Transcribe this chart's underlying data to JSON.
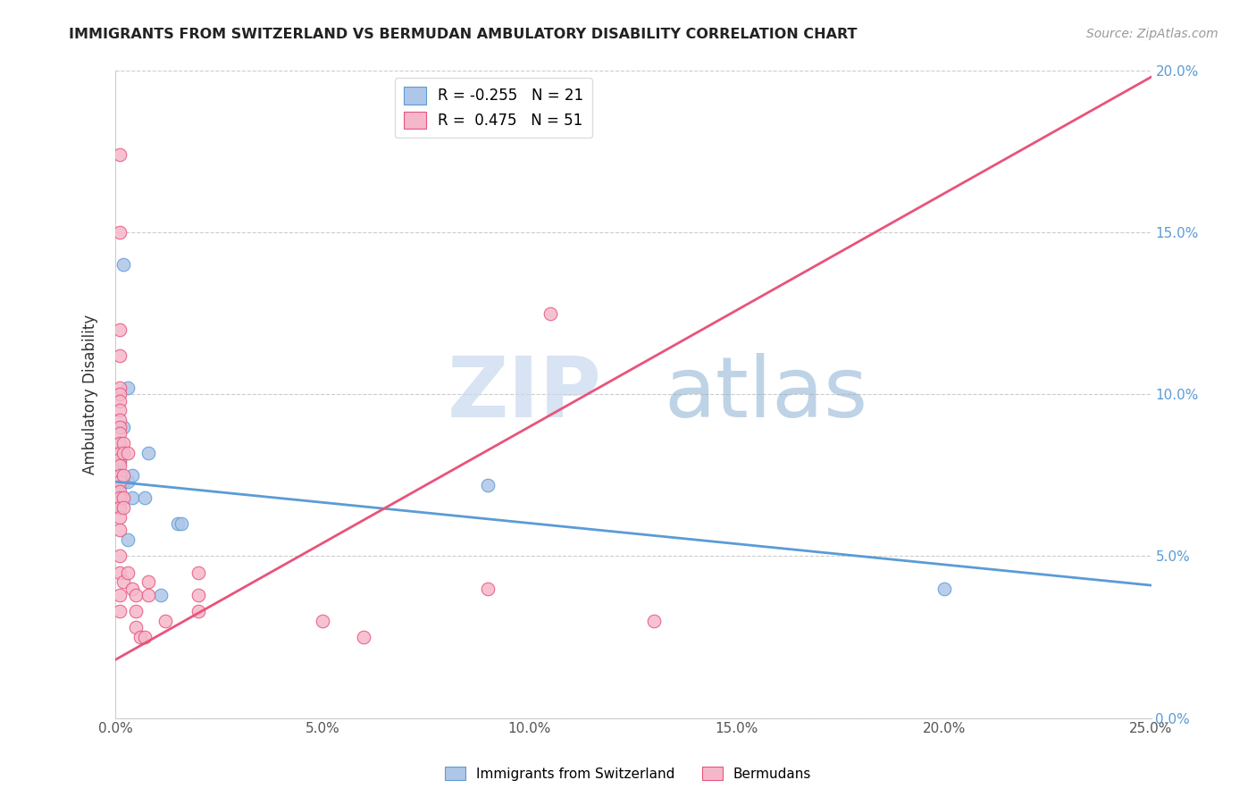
{
  "title": "IMMIGRANTS FROM SWITZERLAND VS BERMUDAN AMBULATORY DISABILITY CORRELATION CHART",
  "source": "Source: ZipAtlas.com",
  "ylabel": "Ambulatory Disability",
  "xlim": [
    0.0,
    0.25
  ],
  "ylim": [
    0.0,
    0.2
  ],
  "xticks": [
    0.0,
    0.05,
    0.1,
    0.15,
    0.2,
    0.25
  ],
  "yticks": [
    0.0,
    0.05,
    0.1,
    0.15,
    0.2
  ],
  "xtick_labels": [
    "0.0%",
    "5.0%",
    "10.0%",
    "15.0%",
    "20.0%",
    "25.0%"
  ],
  "ytick_labels_right": [
    "0.0%",
    "5.0%",
    "10.0%",
    "15.0%",
    "20.0%"
  ],
  "blue_fill_color": "#aec6e8",
  "blue_edge_color": "#5b9bd5",
  "pink_fill_color": "#f5b8cb",
  "pink_edge_color": "#e8537a",
  "blue_line_color": "#5b9bd5",
  "pink_line_color": "#e8537a",
  "legend_blue_r": "-0.255",
  "legend_blue_n": "21",
  "legend_pink_r": "0.475",
  "legend_pink_n": "51",
  "watermark_zip": "ZIP",
  "watermark_atlas": "atlas",
  "blue_line_x": [
    0.0,
    0.25
  ],
  "blue_line_y": [
    0.073,
    0.041
  ],
  "pink_line_x": [
    0.0,
    0.25
  ],
  "pink_line_y": [
    0.018,
    0.198
  ],
  "blue_points": [
    [
      0.001,
      0.073
    ],
    [
      0.001,
      0.079
    ],
    [
      0.001,
      0.075
    ],
    [
      0.001,
      0.072
    ],
    [
      0.001,
      0.068
    ],
    [
      0.001,
      0.065
    ],
    [
      0.002,
      0.14
    ],
    [
      0.002,
      0.09
    ],
    [
      0.002,
      0.073
    ],
    [
      0.003,
      0.102
    ],
    [
      0.003,
      0.073
    ],
    [
      0.003,
      0.055
    ],
    [
      0.004,
      0.075
    ],
    [
      0.004,
      0.068
    ],
    [
      0.007,
      0.068
    ],
    [
      0.008,
      0.082
    ],
    [
      0.011,
      0.038
    ],
    [
      0.015,
      0.06
    ],
    [
      0.016,
      0.06
    ],
    [
      0.09,
      0.072
    ],
    [
      0.2,
      0.04
    ]
  ],
  "pink_points": [
    [
      0.001,
      0.174
    ],
    [
      0.001,
      0.15
    ],
    [
      0.001,
      0.12
    ],
    [
      0.001,
      0.112
    ],
    [
      0.001,
      0.102
    ],
    [
      0.001,
      0.1
    ],
    [
      0.001,
      0.098
    ],
    [
      0.001,
      0.095
    ],
    [
      0.001,
      0.092
    ],
    [
      0.001,
      0.09
    ],
    [
      0.001,
      0.088
    ],
    [
      0.001,
      0.085
    ],
    [
      0.001,
      0.082
    ],
    [
      0.001,
      0.08
    ],
    [
      0.001,
      0.078
    ],
    [
      0.001,
      0.075
    ],
    [
      0.001,
      0.073
    ],
    [
      0.001,
      0.07
    ],
    [
      0.001,
      0.068
    ],
    [
      0.001,
      0.065
    ],
    [
      0.001,
      0.062
    ],
    [
      0.001,
      0.058
    ],
    [
      0.001,
      0.05
    ],
    [
      0.001,
      0.045
    ],
    [
      0.001,
      0.038
    ],
    [
      0.001,
      0.033
    ],
    [
      0.002,
      0.085
    ],
    [
      0.002,
      0.082
    ],
    [
      0.002,
      0.075
    ],
    [
      0.002,
      0.068
    ],
    [
      0.002,
      0.065
    ],
    [
      0.002,
      0.042
    ],
    [
      0.003,
      0.082
    ],
    [
      0.003,
      0.045
    ],
    [
      0.004,
      0.04
    ],
    [
      0.005,
      0.038
    ],
    [
      0.005,
      0.033
    ],
    [
      0.005,
      0.028
    ],
    [
      0.006,
      0.025
    ],
    [
      0.007,
      0.025
    ],
    [
      0.008,
      0.042
    ],
    [
      0.008,
      0.038
    ],
    [
      0.012,
      0.03
    ],
    [
      0.02,
      0.045
    ],
    [
      0.05,
      0.03
    ],
    [
      0.06,
      0.025
    ],
    [
      0.09,
      0.04
    ],
    [
      0.105,
      0.125
    ],
    [
      0.02,
      0.038
    ],
    [
      0.02,
      0.033
    ],
    [
      0.13,
      0.03
    ]
  ]
}
